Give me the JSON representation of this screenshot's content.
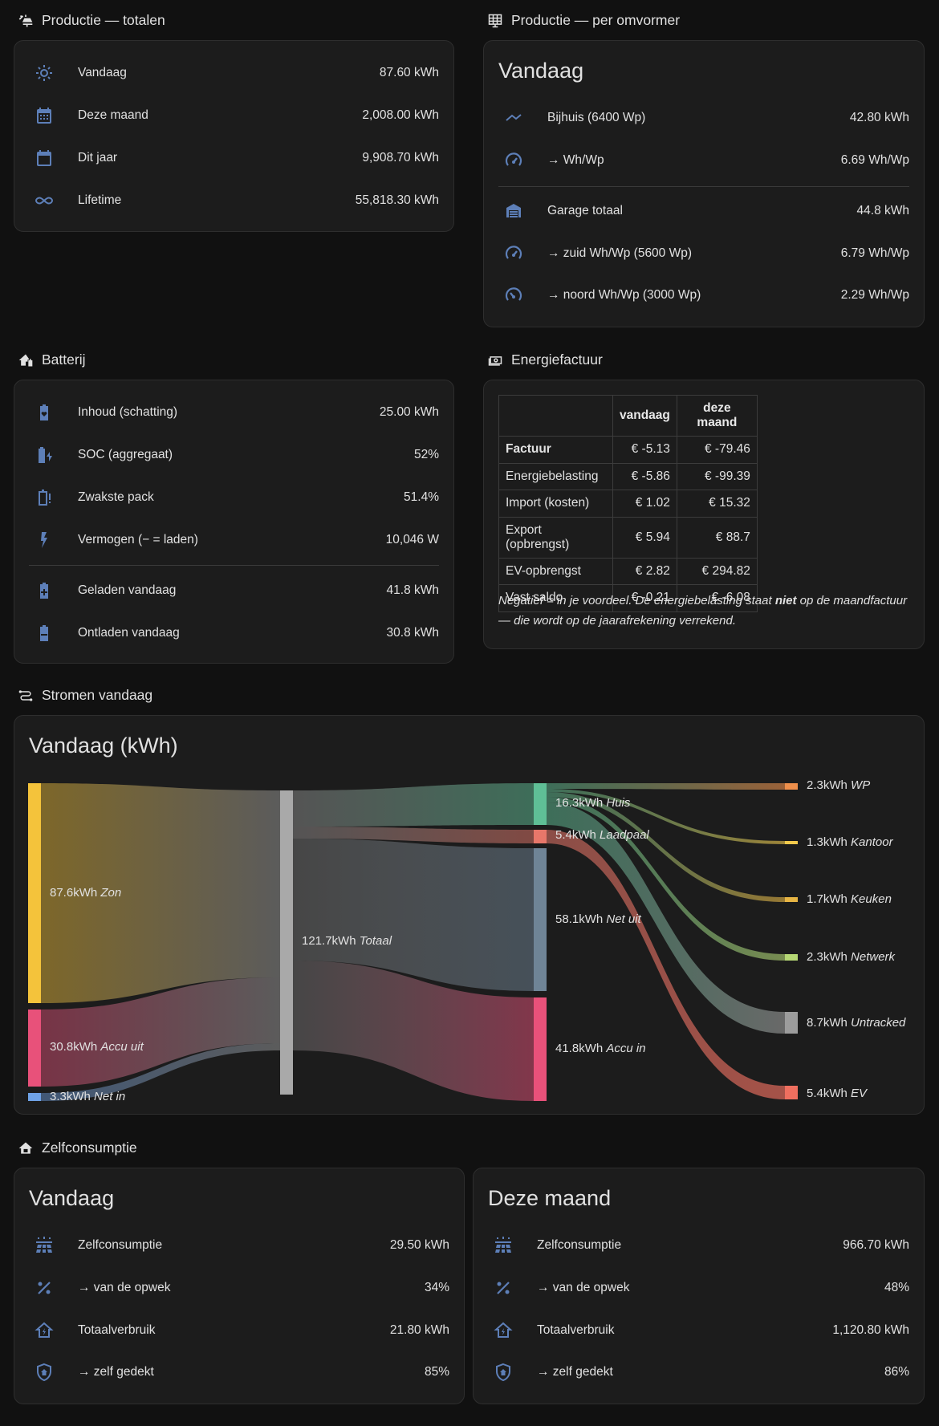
{
  "sections": {
    "productie_totalen": "Productie — totalen",
    "productie_omvormer": "Productie — per omvormer",
    "batterij": "Batterij",
    "energiefactuur": "Energiefactuur",
    "stromen": "Stromen vandaag",
    "zelfconsumptie": "Zelfconsumptie"
  },
  "totalen": [
    {
      "label": "Vandaag",
      "value": "87.60 kWh",
      "icon": "sun-icon"
    },
    {
      "label": "Deze maand",
      "value": "2,008.00 kWh",
      "icon": "calendar-month-icon"
    },
    {
      "label": "Dit jaar",
      "value": "9,908.70 kWh",
      "icon": "calendar-icon"
    },
    {
      "label": "Lifetime",
      "value": "55,818.30 kWh",
      "icon": "infinity-icon"
    }
  ],
  "omvormer": {
    "heading": "Vandaag",
    "rows": [
      {
        "label": "Bijhuis (6400 Wp)",
        "value": "42.80 kWh",
        "icon": "roof-icon"
      },
      {
        "label": "→ Wh/Wp",
        "value": "6.69 Wh/Wp",
        "icon": "gauge-icon"
      },
      {
        "label": "Garage totaal",
        "value": "44.8 kWh",
        "icon": "garage-icon"
      },
      {
        "label": "→ zuid Wh/Wp (5600 Wp)",
        "value": "6.79 Wh/Wp",
        "icon": "gauge-icon"
      },
      {
        "label": "→ noord Wh/Wp (3000 Wp)",
        "value": "2.29 Wh/Wp",
        "icon": "gauge-low-icon"
      }
    ]
  },
  "batterij": [
    {
      "label": "Inhoud (schatting)",
      "value": "25.00 kWh",
      "icon": "battery-heart-icon"
    },
    {
      "label": "SOC (aggregaat)",
      "value": "52%",
      "icon": "battery-charging-icon"
    },
    {
      "label": "Zwakste pack",
      "value": "51.4%",
      "icon": "battery-alert-icon"
    },
    {
      "label": "Vermogen (− = laden)",
      "value": "10,046 W",
      "icon": "lightning-icon"
    },
    {
      "label": "Geladen vandaag",
      "value": "41.8 kWh",
      "icon": "battery-plus-icon"
    },
    {
      "label": "Ontladen vandaag",
      "value": "30.8 kWh",
      "icon": "battery-minus-icon"
    }
  ],
  "factuur": {
    "headers": [
      "",
      "vandaag",
      "deze maand"
    ],
    "rows": [
      {
        "name": "Factuur",
        "today": "€ -5.13",
        "month": "€ -79.46",
        "bold": true
      },
      {
        "name": "Energiebelasting",
        "today": "€ -5.86",
        "month": "€ -99.39"
      },
      {
        "name": "Import (kosten)",
        "today": "€ 1.02",
        "month": "€ 15.32"
      },
      {
        "name": "Export (opbrengst)",
        "today": "€ 5.94",
        "month": "€ 88.7"
      },
      {
        "name": "EV-opbrengst",
        "today": "€ 2.82",
        "month": "€ 294.82"
      },
      {
        "name": "Vast saldo",
        "today": "€ -0.21",
        "month": "€ -6.08"
      }
    ],
    "note_pre": "Negatief = in je voordeel. De energiebelasting staat ",
    "note_bold": "niet",
    "note_post": " op de maandfactuur — die wordt op de jaarafrekening verrekend."
  },
  "sankey": {
    "heading": "Vandaag (kWh)",
    "sources": [
      {
        "value": "87.6kWh",
        "name": "Zon",
        "color": "#f4c33b"
      },
      {
        "value": "30.8kWh",
        "name": "Accu uit",
        "color": "#e8517a"
      },
      {
        "value": "3.3kWh",
        "name": "Net in",
        "color": "#6fa2e6"
      }
    ],
    "total": {
      "value": "121.7kWh",
      "name": "Totaal",
      "color": "#a9a9a9"
    },
    "targets": [
      {
        "value": "16.3kWh",
        "name": "Huis",
        "color": "#5fbf96"
      },
      {
        "value": "5.4kWh",
        "name": "Laadpaal",
        "color": "#e7776a"
      },
      {
        "value": "58.1kWh",
        "name": "Net uit",
        "color": "#6f8496"
      },
      {
        "value": "41.8kWh",
        "name": "Accu in",
        "color": "#e8517a"
      }
    ],
    "sinks": [
      {
        "value": "2.3kWh",
        "name": "WP",
        "color": "#ee8f4b"
      },
      {
        "value": "1.3kWh",
        "name": "Kantoor",
        "color": "#f2c94c"
      },
      {
        "value": "1.7kWh",
        "name": "Keuken",
        "color": "#e7b544"
      },
      {
        "value": "2.3kWh",
        "name": "Netwerk",
        "color": "#b5d774"
      },
      {
        "value": "8.7kWh",
        "name": "Untracked",
        "color": "#9c9c9c"
      },
      {
        "value": "5.4kWh",
        "name": "EV",
        "color": "#ef6f5f"
      }
    ]
  },
  "zelf_vandaag": {
    "heading": "Vandaag",
    "rows": [
      {
        "label": "Zelfconsumptie",
        "value": "29.50 kWh",
        "icon": "solar-panel-icon"
      },
      {
        "label": "→ van de opwek",
        "value": "34%",
        "icon": "percent-icon"
      },
      {
        "label": "Totaalverbruik",
        "value": "21.80 kWh",
        "icon": "home-lightning-icon"
      },
      {
        "label": "→ zelf gedekt",
        "value": "85%",
        "icon": "shield-home-icon"
      }
    ]
  },
  "zelf_maand": {
    "heading": "Deze maand",
    "rows": [
      {
        "label": "Zelfconsumptie",
        "value": "966.70 kWh",
        "icon": "solar-panel-icon"
      },
      {
        "label": "→ van de opwek",
        "value": "48%",
        "icon": "percent-icon"
      },
      {
        "label": "Totaalverbruik",
        "value": "1,120.80 kWh",
        "icon": "home-lightning-icon"
      },
      {
        "label": "→ zelf gedekt",
        "value": "86%",
        "icon": "shield-home-icon"
      }
    ]
  }
}
